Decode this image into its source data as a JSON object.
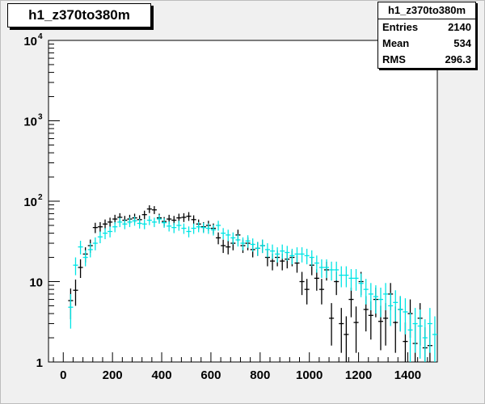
{
  "title": "h1_z370to380m",
  "stats": {
    "name": "h1_z370to380m",
    "rows": [
      {
        "label": "Entries",
        "value": "2140"
      },
      {
        "label": "Mean",
        "value": "534"
      },
      {
        "label": "RMS",
        "value": "296.3"
      }
    ]
  },
  "chart_data": {
    "type": "scatter",
    "title": "h1_z370to380m",
    "xlabel": "",
    "ylabel": "",
    "xlim": [
      -60,
      1520
    ],
    "ylim": [
      1,
      10000
    ],
    "log_y": true,
    "grid": false,
    "x_tick_labels": [
      "0",
      "200",
      "400",
      "600",
      "800",
      "1000",
      "1200",
      "1400"
    ],
    "x_ticks": [
      0,
      200,
      400,
      600,
      800,
      1000,
      1200,
      1400
    ],
    "y_ticks": [
      {
        "value": 1,
        "base": "1",
        "exp": ""
      },
      {
        "value": 10,
        "base": "10",
        "exp": ""
      },
      {
        "value": 100,
        "base": "10",
        "exp": "2"
      },
      {
        "value": 1000,
        "base": "10",
        "exp": "3"
      },
      {
        "value": 10000,
        "base": "10",
        "exp": "4"
      }
    ],
    "bin_halfwidth": 10,
    "series": [
      {
        "color": "#000000",
        "x": [
          30,
          50,
          70,
          90,
          110,
          130,
          150,
          170,
          190,
          210,
          230,
          250,
          270,
          290,
          310,
          330,
          350,
          370,
          390,
          410,
          430,
          450,
          470,
          490,
          510,
          530,
          550,
          570,
          590,
          610,
          630,
          650,
          670,
          690,
          710,
          730,
          750,
          770,
          790,
          810,
          830,
          850,
          870,
          890,
          910,
          930,
          950,
          970,
          990,
          1010,
          1030,
          1050,
          1070,
          1090,
          1110,
          1130,
          1150,
          1170,
          1190,
          1210,
          1230,
          1250,
          1270,
          1290,
          1310,
          1330,
          1350,
          1370,
          1390,
          1410,
          1430,
          1450,
          1470,
          1490
        ],
        "y": [
          5.8,
          7.8,
          15,
          22,
          28,
          47,
          48,
          52,
          55,
          60,
          63,
          58,
          60,
          62,
          59,
          68,
          80,
          78,
          62,
          56,
          60,
          58,
          62,
          63,
          65,
          59,
          52,
          48,
          50,
          46,
          35,
          28,
          27,
          30,
          38,
          28,
          30,
          25,
          26,
          28,
          20,
          18,
          20,
          18,
          19,
          20,
          17,
          10,
          8,
          16,
          11,
          8,
          14,
          3.5,
          10,
          3,
          2.2,
          6,
          3.1,
          10,
          4.5,
          3.8,
          6,
          3.2,
          3.5,
          7,
          3.1,
          4.5,
          1.8,
          4,
          1.7,
          3.5,
          1.5,
          1.6
        ],
        "err": [
          2.4,
          2.8,
          3.9,
          4.7,
          5.3,
          6.9,
          6.9,
          7.2,
          7.4,
          7.7,
          7.9,
          7.6,
          7.7,
          7.9,
          7.7,
          8.2,
          8.9,
          8.8,
          7.9,
          7.5,
          7.7,
          7.6,
          7.9,
          7.9,
          8.1,
          7.7,
          7.2,
          6.9,
          7.1,
          6.8,
          5.9,
          5.3,
          5.2,
          5.5,
          6.2,
          5.3,
          5.5,
          5.0,
          5.1,
          5.3,
          4.5,
          4.2,
          4.5,
          4.2,
          4.4,
          4.5,
          4.1,
          3.2,
          2.8,
          4.0,
          3.3,
          2.8,
          3.7,
          1.9,
          3.2,
          1.7,
          1.5,
          2.4,
          1.8,
          3.2,
          2.1,
          1.9,
          2.4,
          1.8,
          1.9,
          2.6,
          1.8,
          2.1,
          1.3,
          2.0,
          1.3,
          1.9,
          1.2,
          1.3
        ]
      },
      {
        "color": "#00e5e5",
        "x": [
          30,
          50,
          70,
          90,
          110,
          130,
          150,
          170,
          190,
          210,
          230,
          250,
          270,
          290,
          310,
          330,
          350,
          370,
          390,
          410,
          430,
          450,
          470,
          490,
          510,
          530,
          550,
          570,
          590,
          610,
          630,
          650,
          670,
          690,
          710,
          730,
          750,
          770,
          790,
          810,
          830,
          850,
          870,
          890,
          910,
          930,
          950,
          970,
          990,
          1010,
          1030,
          1050,
          1070,
          1090,
          1110,
          1130,
          1150,
          1170,
          1190,
          1210,
          1230,
          1250,
          1270,
          1290,
          1310,
          1330,
          1350,
          1370,
          1390,
          1410,
          1430,
          1450,
          1470,
          1490,
          1510
        ],
        "y": [
          4.8,
          16,
          27,
          20,
          25,
          30,
          36,
          40,
          42,
          48,
          55,
          52,
          55,
          57,
          53,
          52,
          58,
          55,
          60,
          54,
          49,
          47,
          50,
          46,
          42,
          46,
          48,
          47,
          46,
          44,
          50,
          40,
          38,
          35,
          33,
          30,
          32,
          29,
          26,
          28,
          25,
          24,
          22,
          24,
          23,
          21,
          22,
          22,
          21,
          20,
          17,
          15,
          15,
          14,
          14,
          12,
          12,
          11,
          11,
          9.5,
          8,
          7,
          6.5,
          6,
          7,
          5,
          5.5,
          4.5,
          4.2,
          2.5,
          3,
          2.8,
          2,
          3,
          2.2
        ],
        "err": [
          2.2,
          4.0,
          5.2,
          4.5,
          5.0,
          5.5,
          6.0,
          6.3,
          6.5,
          6.9,
          7.4,
          7.2,
          7.4,
          7.5,
          7.3,
          7.2,
          7.6,
          7.4,
          7.7,
          7.3,
          7.0,
          6.9,
          7.1,
          6.8,
          6.5,
          6.8,
          6.9,
          6.9,
          6.8,
          6.6,
          7.1,
          6.3,
          6.2,
          5.9,
          5.7,
          5.5,
          5.7,
          5.4,
          5.1,
          5.3,
          5.0,
          4.9,
          4.7,
          4.9,
          4.8,
          4.6,
          4.7,
          4.7,
          4.6,
          4.5,
          4.1,
          3.9,
          3.9,
          3.7,
          3.7,
          3.5,
          3.5,
          3.3,
          3.3,
          3.1,
          2.8,
          2.6,
          2.5,
          2.4,
          2.6,
          2.2,
          2.3,
          2.1,
          2.0,
          1.6,
          1.7,
          1.7,
          1.4,
          1.7,
          1.5
        ]
      }
    ]
  }
}
